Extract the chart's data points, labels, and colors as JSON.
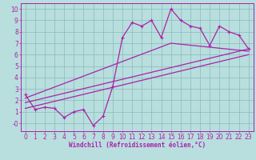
{
  "xlabel": "Windchill (Refroidissement éolien,°C)",
  "xlim": [
    -0.5,
    23.5
  ],
  "ylim": [
    -0.7,
    10.5
  ],
  "xticks": [
    0,
    1,
    2,
    3,
    4,
    5,
    6,
    7,
    8,
    9,
    10,
    11,
    12,
    13,
    14,
    15,
    16,
    17,
    18,
    19,
    20,
    21,
    22,
    23
  ],
  "yticks": [
    0,
    1,
    2,
    3,
    4,
    5,
    6,
    7,
    8,
    9,
    10
  ],
  "ytick_labels": [
    "-0",
    "1",
    "2",
    "3",
    "4",
    "5",
    "6",
    "7",
    "8",
    "9",
    "10"
  ],
  "bg_color": "#b8dede",
  "line_color": "#aa22aa",
  "grid_color": "#88bbbb",
  "main_x": [
    0,
    1,
    2,
    3,
    4,
    5,
    6,
    7,
    8,
    9,
    10,
    11,
    12,
    13,
    14,
    15,
    16,
    17,
    18,
    19,
    20,
    21,
    22,
    23
  ],
  "main_y": [
    2.5,
    1.2,
    1.4,
    1.3,
    0.5,
    1.0,
    1.2,
    -0.2,
    0.6,
    3.2,
    7.5,
    8.8,
    8.5,
    9.0,
    7.5,
    10.0,
    9.0,
    8.5,
    8.3,
    6.8,
    8.5,
    8.0,
    7.7,
    6.5
  ],
  "line1_x": [
    0,
    23
  ],
  "line1_y": [
    1.3,
    6.0
  ],
  "line2_x": [
    0,
    23
  ],
  "line2_y": [
    1.8,
    6.5
  ],
  "line3_x": [
    0,
    15,
    23
  ],
  "line3_y": [
    2.2,
    7.0,
    6.3
  ],
  "marker_size": 3.5,
  "line_width": 0.9,
  "xlabel_fontsize": 5.5,
  "tick_fontsize": 5.5,
  "fig_width": 3.2,
  "fig_height": 2.0,
  "fig_dpi": 100
}
